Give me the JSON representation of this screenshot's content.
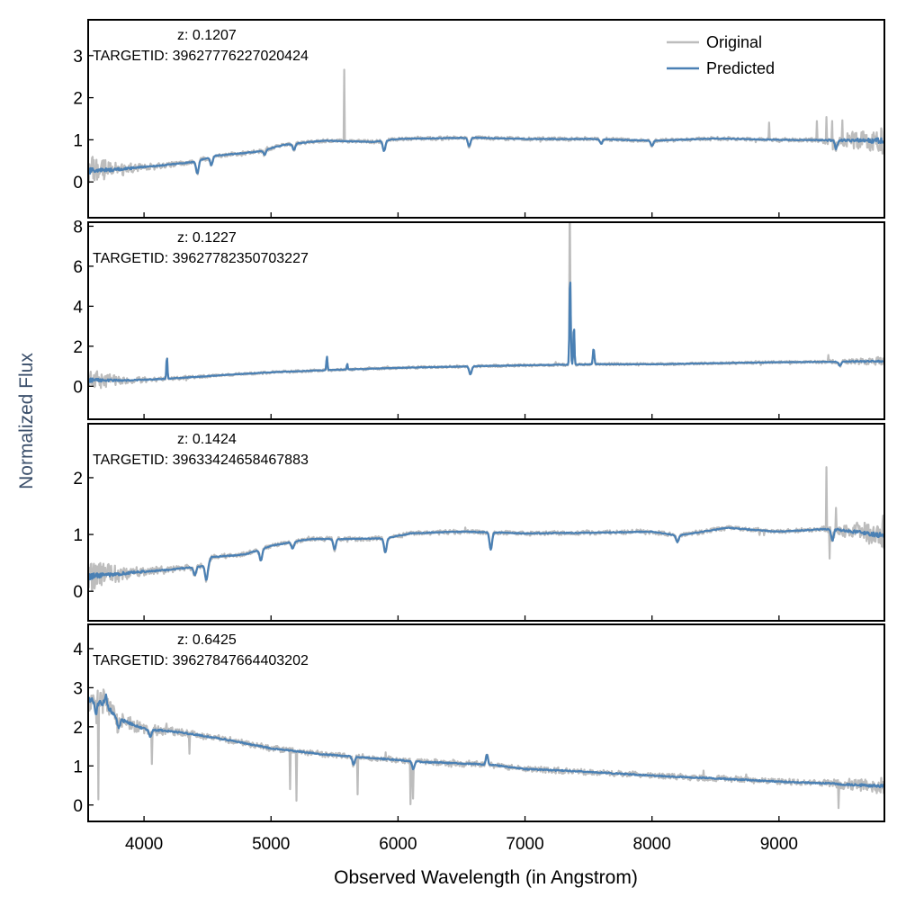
{
  "figure": {
    "ylabel": "Normalized Flux",
    "xlabel": "Observed Wavelength (in Angstrom)",
    "legend": {
      "original": "Original",
      "predicted": "Predicted",
      "placement": "top-right of first panel"
    }
  },
  "colors": {
    "original": "#bdbdbd",
    "predicted": "#4a80b4",
    "ylabel": "#3b4f6b",
    "axes": "#000000"
  },
  "chart_data": [
    {
      "type": "line",
      "z_label": "z: 0.1207",
      "target_label": "TARGETID: 39627776227020424",
      "xlim": [
        3560,
        9830
      ],
      "ylim": [
        -0.85,
        3.85
      ],
      "yticks": [
        0,
        1,
        2,
        3
      ],
      "xticks": [
        4000,
        5000,
        6000,
        7000,
        8000,
        9000
      ],
      "shape": [
        [
          3560,
          0.25
        ],
        [
          3800,
          0.3
        ],
        [
          4100,
          0.38
        ],
        [
          4400,
          0.48
        ],
        [
          4550,
          0.62
        ],
        [
          4900,
          0.72
        ],
        [
          5100,
          0.88
        ],
        [
          5400,
          0.98
        ],
        [
          5800,
          0.95
        ],
        [
          6000,
          1.02
        ],
        [
          6600,
          1.05
        ],
        [
          7000,
          1.02
        ],
        [
          7500,
          1.02
        ],
        [
          8000,
          0.98
        ],
        [
          8500,
          1.03
        ],
        [
          9000,
          1.0
        ],
        [
          9830,
          0.98
        ]
      ],
      "dips": [
        [
          4420,
          0.3
        ],
        [
          4530,
          0.2
        ],
        [
          4950,
          0.12
        ],
        [
          5180,
          0.15
        ],
        [
          5890,
          0.25
        ],
        [
          6560,
          0.2
        ],
        [
          7600,
          0.1
        ],
        [
          8000,
          0.12
        ],
        [
          9450,
          0.2
        ]
      ],
      "predicted_lines": [],
      "original_spikes": [
        [
          5577,
          1.7
        ],
        [
          8920,
          0.4
        ],
        [
          9300,
          0.45
        ],
        [
          9375,
          0.55
        ],
        [
          9420,
          0.45
        ],
        [
          9500,
          0.5
        ]
      ],
      "noise": {
        "base": 0.035,
        "blue_extra": 0.28,
        "blue_scale": 220,
        "red_extra": 0.22,
        "red_start": 9250
      },
      "series": [
        {
          "name": "Original"
        },
        {
          "name": "Predicted"
        }
      ],
      "show_legend": true
    },
    {
      "type": "line",
      "z_label": "z: 0.1227",
      "target_label": "TARGETID: 39627782350703227",
      "xlim": [
        3560,
        9830
      ],
      "ylim": [
        -1.65,
        8.2
      ],
      "yticks": [
        0,
        2,
        4,
        6,
        8
      ],
      "xticks": [
        4000,
        5000,
        6000,
        7000,
        8000,
        9000
      ],
      "shape": [
        [
          3560,
          0.3
        ],
        [
          3900,
          0.3
        ],
        [
          4200,
          0.38
        ],
        [
          4600,
          0.55
        ],
        [
          5000,
          0.7
        ],
        [
          5500,
          0.82
        ],
        [
          6000,
          0.92
        ],
        [
          6600,
          1.0
        ],
        [
          7000,
          1.05
        ],
        [
          7600,
          1.1
        ],
        [
          8000,
          1.1
        ],
        [
          8500,
          1.15
        ],
        [
          9000,
          1.2
        ],
        [
          9830,
          1.25
        ]
      ],
      "dips": [
        [
          6570,
          0.4
        ],
        [
          9480,
          0.2
        ]
      ],
      "predicted_lines": [
        [
          4180,
          1.1,
          6
        ],
        [
          5440,
          0.7,
          6
        ],
        [
          5600,
          0.3,
          5
        ],
        [
          7355,
          4.5,
          7
        ],
        [
          7385,
          2.0,
          6
        ],
        [
          7540,
          0.8,
          8
        ]
      ],
      "original_spikes": [
        [
          7352,
          4.9
        ],
        [
          9390,
          0.35
        ]
      ],
      "noise": {
        "base": 0.05,
        "blue_extra": 0.38,
        "blue_scale": 230,
        "red_extra": 0.12,
        "red_start": 9300
      },
      "series": [
        {
          "name": "Original"
        },
        {
          "name": "Predicted"
        }
      ],
      "show_legend": false
    },
    {
      "type": "line",
      "z_label": "z: 0.1424",
      "target_label": "TARGETID: 39633424658467883",
      "xlim": [
        3560,
        9830
      ],
      "ylim": [
        -0.52,
        2.95
      ],
      "yticks": [
        0,
        1,
        2
      ],
      "xticks": [
        4000,
        5000,
        6000,
        7000,
        8000,
        9000
      ],
      "shape": [
        [
          3560,
          0.25
        ],
        [
          3900,
          0.33
        ],
        [
          4200,
          0.38
        ],
        [
          4500,
          0.45
        ],
        [
          4530,
          0.6
        ],
        [
          4800,
          0.65
        ],
        [
          5000,
          0.8
        ],
        [
          5300,
          0.92
        ],
        [
          5600,
          0.92
        ],
        [
          5900,
          0.93
        ],
        [
          6100,
          1.02
        ],
        [
          6500,
          1.05
        ],
        [
          7000,
          1.02
        ],
        [
          7500,
          1.03
        ],
        [
          8000,
          1.05
        ],
        [
          8200,
          0.98
        ],
        [
          8600,
          1.12
        ],
        [
          8800,
          1.08
        ],
        [
          9000,
          1.05
        ],
        [
          9400,
          1.1
        ],
        [
          9830,
          0.98
        ]
      ],
      "dips": [
        [
          4400,
          0.15
        ],
        [
          4490,
          0.25
        ],
        [
          4920,
          0.2
        ],
        [
          5170,
          0.12
        ],
        [
          5500,
          0.18
        ],
        [
          5900,
          0.25
        ],
        [
          6730,
          0.3
        ],
        [
          8200,
          0.12
        ],
        [
          9420,
          0.2
        ]
      ],
      "predicted_lines": [],
      "original_spikes": [
        [
          9375,
          1.1
        ],
        [
          9400,
          -0.5
        ],
        [
          9450,
          0.4
        ],
        [
          9820,
          0.35
        ]
      ],
      "noise": {
        "base": 0.03,
        "blue_extra": 0.22,
        "blue_scale": 250,
        "red_extra": 0.15,
        "red_start": 9300
      },
      "series": [
        {
          "name": "Original"
        },
        {
          "name": "Predicted"
        }
      ],
      "show_legend": false
    },
    {
      "type": "line",
      "z_label": "z: 0.6425",
      "target_label": "TARGETID: 39627847664403202",
      "xlim": [
        3560,
        9830
      ],
      "ylim": [
        -0.42,
        4.62
      ],
      "yticks": [
        0,
        1,
        2,
        3,
        4
      ],
      "xticks": [
        4000,
        5000,
        6000,
        7000,
        8000,
        9000
      ],
      "shape": [
        [
          3560,
          2.7
        ],
        [
          3680,
          2.6
        ],
        [
          3800,
          2.2
        ],
        [
          4000,
          1.95
        ],
        [
          4300,
          1.85
        ],
        [
          4600,
          1.7
        ],
        [
          5000,
          1.45
        ],
        [
          5400,
          1.3
        ],
        [
          5800,
          1.2
        ],
        [
          6200,
          1.1
        ],
        [
          6600,
          1.05
        ],
        [
          6750,
          1.02
        ],
        [
          7000,
          0.92
        ],
        [
          7500,
          0.85
        ],
        [
          8000,
          0.75
        ],
        [
          8500,
          0.68
        ],
        [
          9000,
          0.6
        ],
        [
          9400,
          0.55
        ],
        [
          9830,
          0.48
        ]
      ],
      "dips": [
        [
          3620,
          0.3
        ],
        [
          3800,
          0.25
        ],
        [
          4050,
          0.2
        ],
        [
          5650,
          0.2
        ],
        [
          6120,
          0.2
        ]
      ],
      "predicted_lines": [
        [
          3700,
          0.25,
          12
        ],
        [
          6700,
          0.25,
          12
        ]
      ],
      "original_spikes": [
        [
          3640,
          -2.4
        ],
        [
          4060,
          -0.8
        ],
        [
          4360,
          -0.5
        ],
        [
          5150,
          -1.0
        ],
        [
          5200,
          -1.25
        ],
        [
          5680,
          -0.95
        ],
        [
          6100,
          -1.1
        ],
        [
          6120,
          -0.75
        ],
        [
          9470,
          -0.6
        ]
      ],
      "noise": {
        "base": 0.06,
        "blue_extra": 0.3,
        "blue_scale": 260,
        "red_extra": 0.1,
        "red_start": 9300
      },
      "series": [
        {
          "name": "Original"
        },
        {
          "name": "Predicted"
        }
      ],
      "show_legend": false
    }
  ]
}
